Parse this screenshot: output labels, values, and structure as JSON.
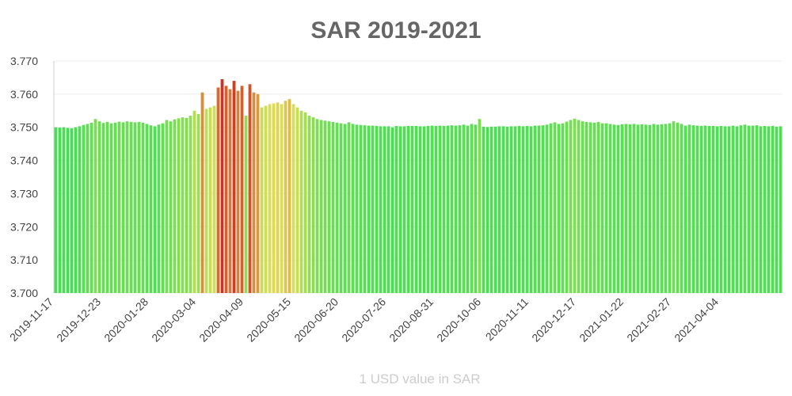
{
  "chart_data": {
    "type": "bar",
    "title": "SAR 2019-2021",
    "x_label": "1 USD value in SAR",
    "categories": [
      "2019-11-17",
      null,
      null,
      null,
      null,
      null,
      null,
      null,
      null,
      null,
      null,
      null,
      "2019-12-23",
      null,
      null,
      null,
      null,
      null,
      null,
      null,
      null,
      null,
      null,
      null,
      "2020-01-28",
      null,
      null,
      null,
      null,
      null,
      null,
      null,
      null,
      null,
      null,
      null,
      "2020-03-04",
      null,
      null,
      null,
      null,
      null,
      null,
      null,
      null,
      null,
      null,
      null,
      "2020-04-09",
      null,
      null,
      null,
      null,
      null,
      null,
      null,
      null,
      null,
      null,
      null,
      "2020-05-15",
      null,
      null,
      null,
      null,
      null,
      null,
      null,
      null,
      null,
      null,
      null,
      "2020-06-20",
      null,
      null,
      null,
      null,
      null,
      null,
      null,
      null,
      null,
      null,
      null,
      "2020-07-26",
      null,
      null,
      null,
      null,
      null,
      null,
      null,
      null,
      null,
      null,
      null,
      "2020-08-31",
      null,
      null,
      null,
      null,
      null,
      null,
      null,
      null,
      null,
      null,
      null,
      "2020-10-06",
      null,
      null,
      null,
      null,
      null,
      null,
      null,
      null,
      null,
      null,
      null,
      "2020-11-11",
      null,
      null,
      null,
      null,
      null,
      null,
      null,
      null,
      null,
      null,
      null,
      "2020-12-17",
      null,
      null,
      null,
      null,
      null,
      null,
      null,
      null,
      null,
      null,
      null,
      "2021-01-22",
      null,
      null,
      null,
      null,
      null,
      null,
      null,
      null,
      null,
      null,
      null,
      "2021-02-27",
      null,
      null,
      null,
      null,
      null,
      null,
      null,
      null,
      null,
      null,
      null,
      "2021-04-04",
      null,
      null,
      null,
      null,
      null,
      null,
      null,
      null,
      null,
      null,
      null,
      null,
      null,
      null,
      null
    ],
    "values": [
      3.75,
      3.7499,
      3.75,
      3.7498,
      3.7497,
      3.75,
      3.7503,
      3.7507,
      3.751,
      3.7514,
      3.7525,
      3.7518,
      3.7513,
      3.7516,
      3.7512,
      3.7514,
      3.7517,
      3.7515,
      3.7518,
      3.7516,
      3.7515,
      3.7516,
      3.7514,
      3.751,
      3.7506,
      3.7503,
      3.7508,
      3.7512,
      3.7522,
      3.7518,
      3.7524,
      3.7527,
      3.753,
      3.7528,
      3.7535,
      3.755,
      3.754,
      3.7605,
      3.7555,
      3.756,
      3.7565,
      3.762,
      3.7645,
      3.7625,
      3.7615,
      3.764,
      3.761,
      3.7625,
      3.7535,
      3.763,
      3.7605,
      3.76,
      3.756,
      3.7565,
      3.757,
      3.7572,
      3.7575,
      3.757,
      3.758,
      3.7585,
      3.757,
      3.756,
      3.755,
      3.7545,
      3.7535,
      3.753,
      3.7525,
      3.7522,
      3.752,
      3.7518,
      3.7516,
      3.7514,
      3.7512,
      3.751,
      3.7515,
      3.751,
      3.7508,
      3.7507,
      3.7506,
      3.7505,
      3.7505,
      3.7504,
      3.7503,
      3.7503,
      3.7503,
      3.75,
      3.7504,
      3.7503,
      3.7503,
      3.7504,
      3.7504,
      3.7504,
      3.7503,
      3.7503,
      3.7504,
      3.7505,
      3.7504,
      3.7505,
      3.7504,
      3.7505,
      3.7506,
      3.7505,
      3.7506,
      3.7508,
      3.7505,
      3.751,
      3.7508,
      3.7525,
      3.7502,
      3.7501,
      3.7502,
      3.7502,
      3.7503,
      3.7503,
      3.7502,
      3.7503,
      3.7503,
      3.7504,
      3.7503,
      3.7504,
      3.7503,
      3.7505,
      3.7505,
      3.7506,
      3.7508,
      3.7512,
      3.7515,
      3.751,
      3.7512,
      3.7517,
      3.7522,
      3.7526,
      3.7522,
      3.7518,
      3.7516,
      3.7515,
      3.7514,
      3.7516,
      3.7512,
      3.7512,
      3.751,
      3.7508,
      3.7507,
      3.7509,
      3.751,
      3.7509,
      3.751,
      3.7508,
      3.7509,
      3.7508,
      3.7507,
      3.751,
      3.7508,
      3.7509,
      3.751,
      3.7512,
      3.7518,
      3.7514,
      3.751,
      3.7505,
      3.7508,
      3.7506,
      3.7505,
      3.7504,
      3.7505,
      3.7504,
      3.7504,
      3.7503,
      3.7504,
      3.7503,
      3.7503,
      3.7505,
      3.7503,
      3.7506,
      3.7508,
      3.7505,
      3.7505,
      3.7506,
      3.7503,
      3.7504,
      3.7503,
      3.7504,
      3.7502,
      3.7503
    ],
    "color_scale": [
      "#44dd55",
      "#dddd55",
      "#cc3322"
    ],
    "ylim": [
      3.7,
      3.77
    ],
    "yticks": [
      {
        "value": 3.7,
        "label": "3.700"
      },
      {
        "value": 3.71,
        "label": "3.710"
      },
      {
        "value": 3.72,
        "label": "3.720"
      },
      {
        "value": 3.73,
        "label": "3.730"
      },
      {
        "value": 3.74,
        "label": "3.740"
      },
      {
        "value": 3.75,
        "label": "3.750"
      },
      {
        "value": 3.76,
        "label": "3.760"
      },
      {
        "value": 3.77,
        "label": "3.770"
      }
    ],
    "grid": true
  }
}
